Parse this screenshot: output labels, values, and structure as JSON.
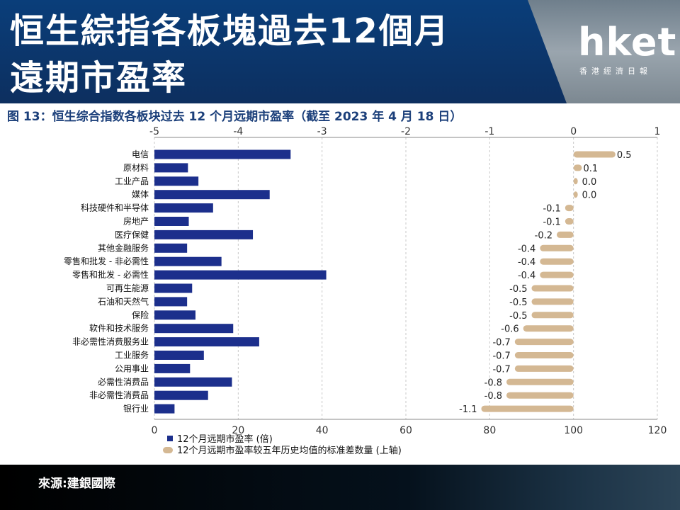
{
  "header": {
    "title_line1": "恒生綜指各板塊過去12個月",
    "title_line2": "遠期市盈率",
    "logo_main": "hket",
    "logo_sub": "香港經濟日報"
  },
  "footer": {
    "source": "來源:建銀國際"
  },
  "chart_data": {
    "type": "bar",
    "title": "图 13：恒生综合指数各板块过去 12 个月远期市盈率（截至 2023 年 4 月 18 日）",
    "categories": [
      "电信",
      "原材料",
      "工业产品",
      "媒体",
      "科技硬件和半导体",
      "房地产",
      "医疗保健",
      "其他金融服务",
      "零售和批发 - 非必需性",
      "零售和批发 - 必需性",
      "可再生能源",
      "石油和天然气",
      "保险",
      "软件和技术服务",
      "非必需性消费服务业",
      "工业服务",
      "公用事业",
      "必需性消费品",
      "非必需性消费品",
      "银行业"
    ],
    "series": [
      {
        "name": "12个月远期市盈率 (倍)",
        "axis": "bottom",
        "color": "#1c2f8c",
        "values": [
          32.5,
          8,
          10.5,
          27.5,
          14,
          8.2,
          23.5,
          7.8,
          16,
          41,
          9,
          7.8,
          9.8,
          18.8,
          25,
          11.8,
          8.5,
          18.5,
          12.8,
          4.8
        ]
      },
      {
        "name": "12个月远期市盈率较五年历史均值的标准差数量 (上轴)",
        "axis": "top",
        "color": "#d4b893",
        "values": [
          0.5,
          0.1,
          0.0,
          0.0,
          -0.1,
          -0.1,
          -0.2,
          -0.4,
          -0.4,
          -0.4,
          -0.5,
          -0.5,
          -0.5,
          -0.6,
          -0.7,
          -0.7,
          -0.7,
          -0.8,
          -0.8,
          -1.1
        ],
        "labels": [
          "0.5",
          "0.1",
          "0.0",
          "0.0",
          "-0.1",
          "-0.1",
          "-0.2",
          "-0.4",
          "-0.4",
          "-0.4",
          "-0.5",
          "-0.5",
          "-0.5",
          "-0.6",
          "-0.7",
          "-0.7",
          "-0.7",
          "-0.8",
          "-0.8",
          "-1.1"
        ]
      }
    ],
    "bottom_axis": {
      "min": 0,
      "max": 120,
      "ticks": [
        "0",
        "20",
        "40",
        "60",
        "80",
        "100",
        "120"
      ]
    },
    "top_axis": {
      "min": -5,
      "max": 1,
      "ticks": [
        "-5",
        "-4",
        "-3",
        "-2",
        "-1",
        "0",
        "1"
      ]
    },
    "grid": true,
    "legend_position": "bottom-left"
  }
}
